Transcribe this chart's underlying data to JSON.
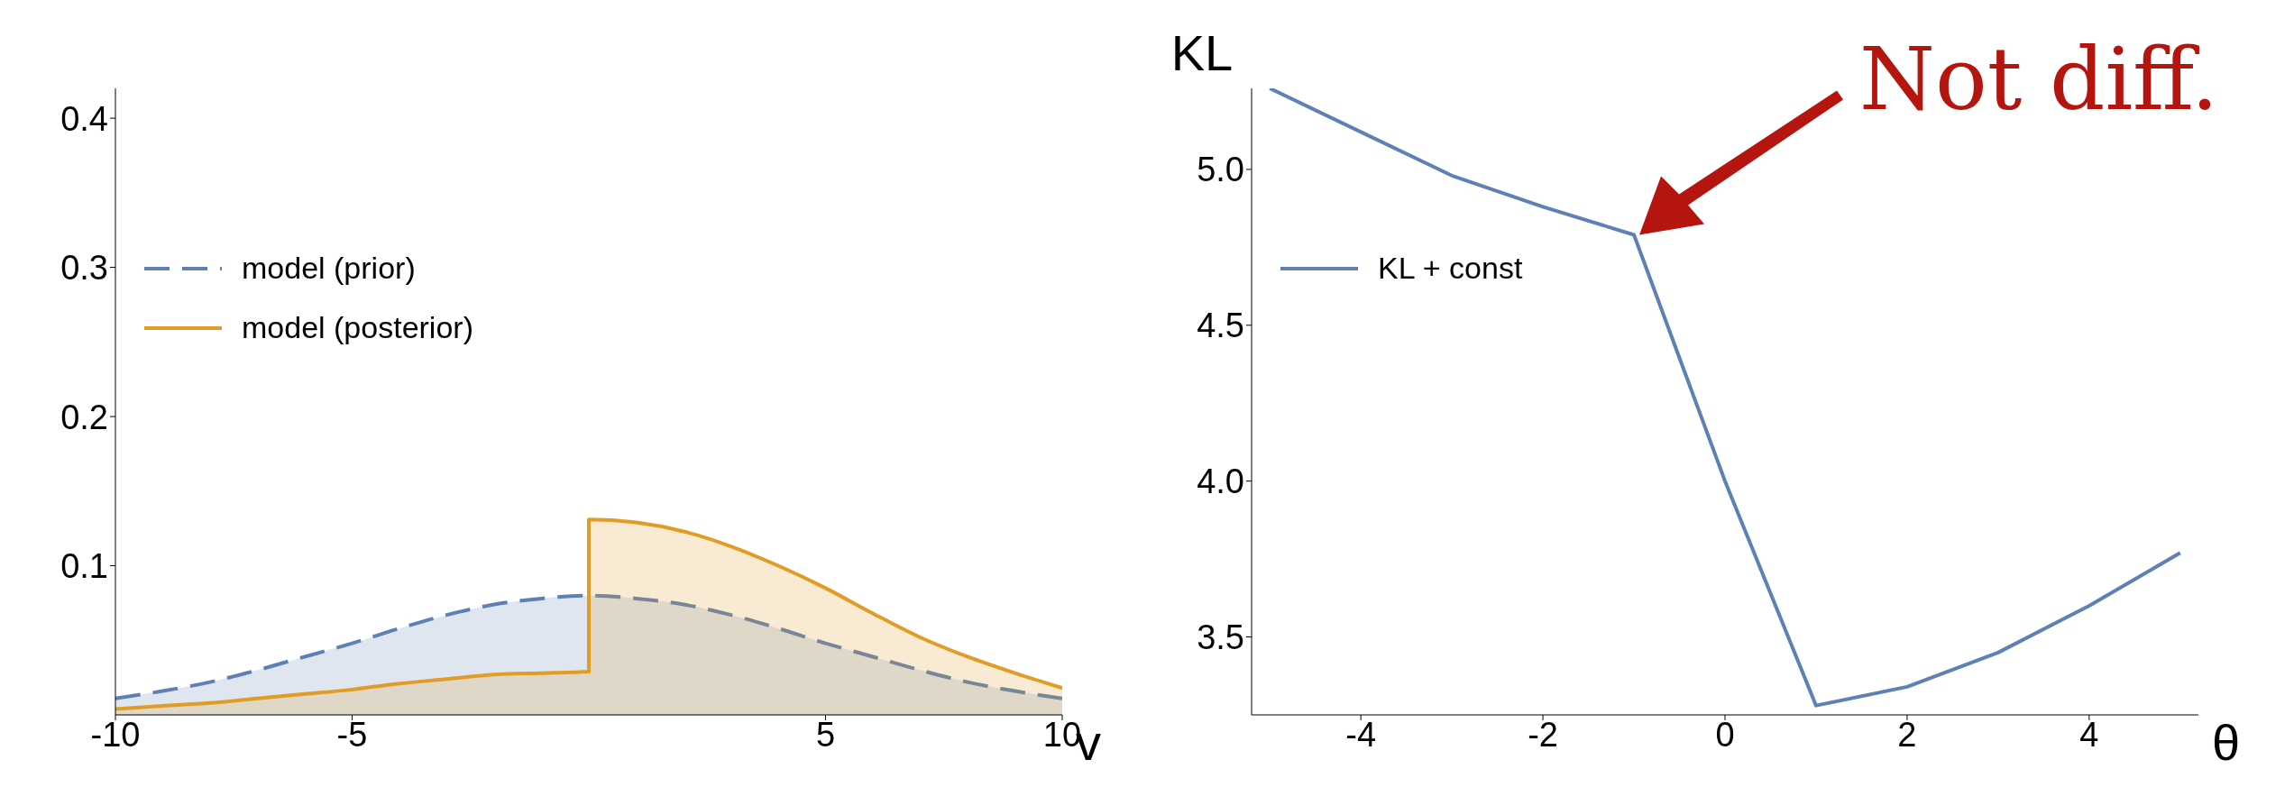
{
  "chart_data": [
    {
      "type": "area",
      "xlabel": "v",
      "xlim": [
        -10,
        10
      ],
      "ylim": [
        0,
        0.42
      ],
      "xticks": [
        -10,
        -5,
        5,
        10
      ],
      "yticks": [
        0.1,
        0.2,
        0.3,
        0.4
      ],
      "legend": "left",
      "grid": false,
      "series": [
        {
          "name": "model (prior)",
          "color": "#5e81b5",
          "line_style": "dashed",
          "x": [
            -10,
            -9,
            -8,
            -7,
            -6,
            -5,
            -4,
            -3,
            -2,
            -1,
            0,
            1,
            2,
            3,
            4,
            5,
            6,
            7,
            8,
            9,
            10
          ],
          "values": [
            0.011,
            0.016,
            0.022,
            0.03,
            0.039,
            0.048,
            0.058,
            0.067,
            0.074,
            0.078,
            0.08,
            0.078,
            0.074,
            0.067,
            0.058,
            0.048,
            0.039,
            0.03,
            0.022,
            0.016,
            0.011
          ]
        },
        {
          "name": "model (posterior)",
          "color": "#e19c24",
          "line_style": "solid",
          "x": [
            -10,
            -9,
            -8,
            -7,
            -6,
            -5,
            -4,
            -3,
            -2,
            -1,
            0,
            0,
            1,
            2,
            3,
            4,
            5,
            6,
            7,
            8,
            9,
            10
          ],
          "values": [
            0.004,
            0.006,
            0.008,
            0.011,
            0.014,
            0.017,
            0.021,
            0.024,
            0.027,
            0.028,
            0.029,
            0.131,
            0.129,
            0.123,
            0.113,
            0.1,
            0.085,
            0.068,
            0.052,
            0.039,
            0.028,
            0.018
          ]
        }
      ]
    },
    {
      "type": "line",
      "xlabel": "θ",
      "ylabel": "KL",
      "xlim": [
        -5.2,
        5.2
      ],
      "ylim": [
        3.25,
        5.26
      ],
      "xticks": [
        -4,
        -2,
        0,
        2,
        4
      ],
      "yticks": [
        {
          "value": 3.5,
          "label": "3.5"
        },
        {
          "value": 4,
          "label": "4.0"
        },
        {
          "value": 4.5,
          "label": "4.5"
        },
        {
          "value": 5,
          "label": "5.0"
        }
      ],
      "legend": "left",
      "grid": false,
      "annotations": [
        {
          "text": "Not diff.",
          "x": -1,
          "y": 4.79
        }
      ],
      "series": [
        {
          "name": "KL + const",
          "color": "#5e81b5",
          "line_style": "solid",
          "x": [
            -5,
            -4,
            -3,
            -2,
            -1,
            0,
            1,
            2,
            3,
            4,
            5
          ],
          "values": [
            5.26,
            5.12,
            4.98,
            4.88,
            4.79,
            4.0,
            3.28,
            3.34,
            3.45,
            3.6,
            3.77
          ]
        }
      ]
    }
  ]
}
